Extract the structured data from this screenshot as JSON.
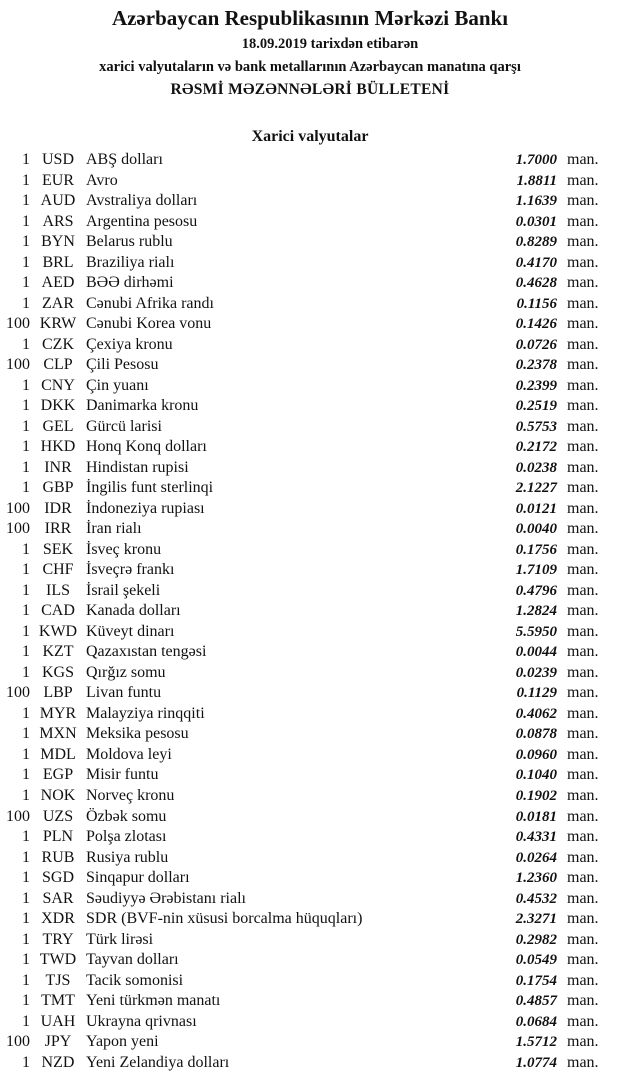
{
  "header": {
    "title": "Azərbaycan Respublikasının Mərkəzi Bankı",
    "date_line": "18.09.2019  tarixdən etibarən",
    "subtitle": "xarici valyutaların və bank metallarının Azərbaycan manatına qarşı",
    "bulletin": "RƏSMİ MƏZƏNNƏLƏRİ BÜLLETENİ"
  },
  "section_title": "Xarici valyutalar",
  "currencies": [
    {
      "qty": "1",
      "code": "USD",
      "name": "ABŞ dolları",
      "rate": "1.7000",
      "unit": "man."
    },
    {
      "qty": "1",
      "code": "EUR",
      "name": "Avro",
      "rate": "1.8811",
      "unit": "man."
    },
    {
      "qty": "1",
      "code": "AUD",
      "name": "Avstraliya dolları",
      "rate": "1.1639",
      "unit": "man."
    },
    {
      "qty": "1",
      "code": "ARS",
      "name": "Argentina pesosu",
      "rate": "0.0301",
      "unit": "man."
    },
    {
      "qty": "1",
      "code": "BYN",
      "name": "Belarus rublu",
      "rate": "0.8289",
      "unit": "man."
    },
    {
      "qty": "1",
      "code": "BRL",
      "name": "Braziliya rialı",
      "rate": "0.4170",
      "unit": "man."
    },
    {
      "qty": "1",
      "code": "AED",
      "name": "BƏƏ dirhəmi",
      "rate": "0.4628",
      "unit": "man."
    },
    {
      "qty": "1",
      "code": "ZAR",
      "name": "Cənubi Afrika randı",
      "rate": "0.1156",
      "unit": "man."
    },
    {
      "qty": "100",
      "code": "KRW",
      "name": "Cənubi Korea vonu",
      "rate": "0.1426",
      "unit": "man."
    },
    {
      "qty": "1",
      "code": "CZK",
      "name": "Çexiya kronu",
      "rate": "0.0726",
      "unit": "man."
    },
    {
      "qty": "100",
      "code": "CLP",
      "name": "Çili Pesosu",
      "rate": "0.2378",
      "unit": "man."
    },
    {
      "qty": "1",
      "code": "CNY",
      "name": "Çin yuanı",
      "rate": "0.2399",
      "unit": "man."
    },
    {
      "qty": "1",
      "code": "DKK",
      "name": "Danimarka kronu",
      "rate": "0.2519",
      "unit": "man."
    },
    {
      "qty": "1",
      "code": "GEL",
      "name": "Gürcü larisi",
      "rate": "0.5753",
      "unit": "man."
    },
    {
      "qty": "1",
      "code": "HKD",
      "name": "Honq Konq dolları",
      "rate": "0.2172",
      "unit": "man."
    },
    {
      "qty": "1",
      "code": "INR",
      "name": "Hindistan rupisi",
      "rate": "0.0238",
      "unit": "man."
    },
    {
      "qty": "1",
      "code": "GBP",
      "name": "İngilis funt sterlinqi",
      "rate": "2.1227",
      "unit": "man."
    },
    {
      "qty": "100",
      "code": "IDR",
      "name": "İndoneziya rupiası",
      "rate": "0.0121",
      "unit": "man."
    },
    {
      "qty": "100",
      "code": "IRR",
      "name": "İran rialı",
      "rate": "0.0040",
      "unit": "man."
    },
    {
      "qty": "1",
      "code": "SEK",
      "name": "İsveç kronu",
      "rate": "0.1756",
      "unit": "man."
    },
    {
      "qty": "1",
      "code": "CHF",
      "name": "İsveçrə frankı",
      "rate": "1.7109",
      "unit": "man."
    },
    {
      "qty": "1",
      "code": "ILS",
      "name": "İsrail şekeli",
      "rate": "0.4796",
      "unit": "man."
    },
    {
      "qty": "1",
      "code": "CAD",
      "name": "Kanada dolları",
      "rate": "1.2824",
      "unit": "man."
    },
    {
      "qty": "1",
      "code": "KWD",
      "name": "Küveyt dinarı",
      "rate": "5.5950",
      "unit": "man."
    },
    {
      "qty": "1",
      "code": "KZT",
      "name": "Qazaxıstan tengəsi",
      "rate": "0.0044",
      "unit": "man."
    },
    {
      "qty": "1",
      "code": "KGS",
      "name": "Qırğız somu",
      "rate": "0.0239",
      "unit": "man."
    },
    {
      "qty": "100",
      "code": "LBP",
      "name": "Livan funtu",
      "rate": "0.1129",
      "unit": "man."
    },
    {
      "qty": "1",
      "code": "MYR",
      "name": "Malayziya rinqqiti",
      "rate": "0.4062",
      "unit": "man."
    },
    {
      "qty": "1",
      "code": "MXN",
      "name": "Meksika pesosu",
      "rate": "0.0878",
      "unit": "man."
    },
    {
      "qty": "1",
      "code": "MDL",
      "name": "Moldova leyi",
      "rate": "0.0960",
      "unit": "man."
    },
    {
      "qty": "1",
      "code": "EGP",
      "name": "Misir funtu",
      "rate": "0.1040",
      "unit": "man."
    },
    {
      "qty": "1",
      "code": "NOK",
      "name": "Norveç kronu",
      "rate": "0.1902",
      "unit": "man."
    },
    {
      "qty": "100",
      "code": "UZS",
      "name": "Özbək somu",
      "rate": "0.0181",
      "unit": "man."
    },
    {
      "qty": "1",
      "code": "PLN",
      "name": "Polşa zlotası",
      "rate": "0.4331",
      "unit": "man."
    },
    {
      "qty": "1",
      "code": "RUB",
      "name": "Rusiya rublu",
      "rate": "0.0264",
      "unit": "man."
    },
    {
      "qty": "1",
      "code": "SGD",
      "name": "Sinqapur dolları",
      "rate": "1.2360",
      "unit": "man."
    },
    {
      "qty": "1",
      "code": "SAR",
      "name": "Səudiyyə Ərəbistanı rialı",
      "rate": "0.4532",
      "unit": "man."
    },
    {
      "qty": "1",
      "code": "XDR",
      "name": "SDR (BVF-nin xüsusi borcalma hüquqları)",
      "rate": "2.3271",
      "unit": "man."
    },
    {
      "qty": "1",
      "code": "TRY",
      "name": "Türk lirəsi",
      "rate": "0.2982",
      "unit": "man."
    },
    {
      "qty": "1",
      "code": "TWD",
      "name": "Tayvan dolları",
      "rate": "0.0549",
      "unit": "man."
    },
    {
      "qty": "1",
      "code": "TJS",
      "name": "Tacik somonisi",
      "rate": "0.1754",
      "unit": "man."
    },
    {
      "qty": "1",
      "code": "TMT",
      "name": "Yeni türkmən manatı",
      "rate": "0.4857",
      "unit": "man."
    },
    {
      "qty": "1",
      "code": "UAH",
      "name": "Ukrayna qrivnası",
      "rate": "0.0684",
      "unit": "man."
    },
    {
      "qty": "100",
      "code": "JPY",
      "name": "Yapon yeni",
      "rate": "1.5712",
      "unit": "man."
    },
    {
      "qty": "1",
      "code": "NZD",
      "name": "Yeni Zelandiya dolları",
      "rate": "1.0774",
      "unit": "man."
    }
  ]
}
